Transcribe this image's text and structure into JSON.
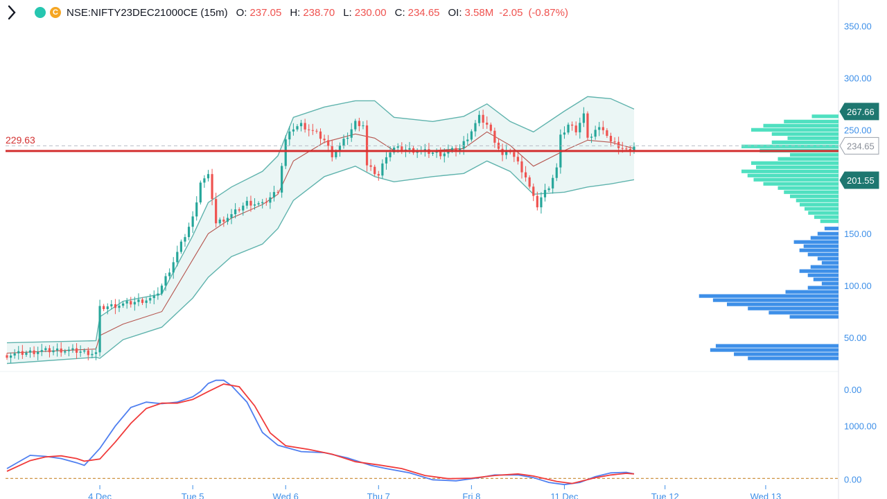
{
  "header": {
    "symbol": "NSE:NIFTY23DEC21000CE (15m)",
    "logo_letter": "C",
    "o_label": "O:",
    "o_value": "237.05",
    "h_label": "H:",
    "h_value": "238.70",
    "l_label": "L:",
    "l_value": "230.00",
    "c_label": "C:",
    "c_value": "234.65",
    "oi_label": "OI:",
    "oi_value": "3.58M",
    "change": "-2.05",
    "change_pct": "(-0.87%)"
  },
  "colors": {
    "up": "#26a69a",
    "down": "#ef5350",
    "bb": "#5fb3ad",
    "bb_fill": "#e8f5f3",
    "basis": "#b5554e",
    "price_line": "#d32f2f",
    "vp_up": "#4fe0c0",
    "vp_down": "#3d8fe8",
    "axis_text": "#3d8fe8",
    "osc_fast": "#4f7ff0",
    "osc_slow": "#f03a3a",
    "osc_zero": "#c8872c"
  },
  "chart_data": [
    {
      "type": "candlestick",
      "ylim": [
        0,
        375
      ],
      "y_ticks": [
        "350.00",
        "300.00",
        "250.00",
        "150.00",
        "100.00",
        "50.00",
        "0.00"
      ],
      "y_tick_values": [
        350,
        300,
        250,
        150,
        100,
        50,
        0
      ],
      "x_ticks": [
        "4 Dec",
        "Tue 5",
        "Wed 6",
        "Thu 7",
        "Fri 8",
        "11 Dec",
        "Tue 12",
        "Wed 13"
      ],
      "current_price": 234.65,
      "price_line_value": 229.63,
      "price_line_label": "229.63",
      "bb_upper_label": "267.66",
      "bb_upper_value": 267.66,
      "bb_lower_label": "201.55",
      "bb_lower_value": 201.55,
      "close_series": [
        [
          0,
          33
        ],
        [
          8,
          37
        ],
        [
          14,
          38
        ],
        [
          18,
          37
        ],
        [
          22,
          35
        ],
        [
          23,
          35
        ],
        [
          24,
          78
        ],
        [
          26,
          80
        ],
        [
          30,
          82
        ],
        [
          34,
          85
        ],
        [
          38,
          88
        ],
        [
          40,
          100
        ],
        [
          42,
          115
        ],
        [
          45,
          140
        ],
        [
          48,
          165
        ],
        [
          50,
          200
        ],
        [
          52,
          205
        ],
        [
          53,
          185
        ],
        [
          54,
          160
        ],
        [
          58,
          168
        ],
        [
          62,
          180
        ],
        [
          66,
          178
        ],
        [
          70,
          192
        ],
        [
          72,
          240
        ],
        [
          74,
          252
        ],
        [
          76,
          255
        ],
        [
          80,
          246
        ],
        [
          82,
          240
        ],
        [
          84,
          226
        ],
        [
          86,
          234
        ],
        [
          88,
          244
        ],
        [
          90,
          257
        ],
        [
          92,
          255
        ],
        [
          93,
          215
        ],
        [
          94,
          212
        ],
        [
          96,
          206
        ],
        [
          98,
          226
        ],
        [
          100,
          232
        ],
        [
          106,
          230
        ],
        [
          112,
          227
        ],
        [
          117,
          232
        ],
        [
          119,
          243
        ],
        [
          122,
          262
        ],
        [
          124,
          255
        ],
        [
          126,
          240
        ],
        [
          128,
          225
        ],
        [
          130,
          230
        ],
        [
          132,
          218
        ],
        [
          134,
          205
        ],
        [
          136,
          184
        ],
        [
          137,
          177
        ],
        [
          138,
          185
        ],
        [
          140,
          196
        ],
        [
          142,
          213
        ],
        [
          143,
          243
        ],
        [
          145,
          255
        ],
        [
          147,
          250
        ],
        [
          149,
          265
        ],
        [
          150,
          240
        ],
        [
          152,
          250
        ],
        [
          154,
          252
        ],
        [
          156,
          238
        ],
        [
          158,
          234
        ],
        [
          160,
          230
        ],
        [
          162,
          234.65
        ]
      ],
      "bb_upper": [
        [
          0,
          45
        ],
        [
          23,
          47
        ],
        [
          24,
          70
        ],
        [
          30,
          85
        ],
        [
          40,
          92
        ],
        [
          48,
          148
        ],
        [
          52,
          180
        ],
        [
          58,
          195
        ],
        [
          66,
          210
        ],
        [
          70,
          225
        ],
        [
          74,
          262
        ],
        [
          82,
          272
        ],
        [
          90,
          278
        ],
        [
          95,
          278
        ],
        [
          100,
          262
        ],
        [
          110,
          258
        ],
        [
          118,
          263
        ],
        [
          124,
          275
        ],
        [
          130,
          258
        ],
        [
          136,
          248
        ],
        [
          144,
          268
        ],
        [
          150,
          282
        ],
        [
          156,
          280
        ],
        [
          162,
          270
        ]
      ],
      "bb_basis": [
        [
          0,
          35
        ],
        [
          23,
          39
        ],
        [
          24,
          52
        ],
        [
          30,
          63
        ],
        [
          40,
          75
        ],
        [
          48,
          125
        ],
        [
          52,
          150
        ],
        [
          58,
          165
        ],
        [
          66,
          178
        ],
        [
          70,
          188
        ],
        [
          74,
          220
        ],
        [
          82,
          238
        ],
        [
          90,
          246
        ],
        [
          95,
          242
        ],
        [
          100,
          230
        ],
        [
          110,
          230
        ],
        [
          118,
          232
        ],
        [
          124,
          248
        ],
        [
          130,
          235
        ],
        [
          136,
          215
        ],
        [
          144,
          230
        ],
        [
          150,
          240
        ],
        [
          156,
          238
        ],
        [
          162,
          232
        ]
      ],
      "bb_lower": [
        [
          0,
          25
        ],
        [
          23,
          31
        ],
        [
          24,
          30
        ],
        [
          30,
          48
        ],
        [
          40,
          60
        ],
        [
          48,
          88
        ],
        [
          52,
          108
        ],
        [
          58,
          128
        ],
        [
          66,
          140
        ],
        [
          70,
          155
        ],
        [
          74,
          182
        ],
        [
          82,
          205
        ],
        [
          90,
          215
        ],
        [
          95,
          205
        ],
        [
          100,
          200
        ],
        [
          110,
          205
        ],
        [
          118,
          208
        ],
        [
          124,
          220
        ],
        [
          130,
          210
        ],
        [
          136,
          188
        ],
        [
          144,
          190
        ],
        [
          150,
          195
        ],
        [
          156,
          198
        ],
        [
          162,
          202
        ]
      ],
      "volume_profile_up": [
        [
          263,
          0.22
        ],
        [
          258,
          0.45
        ],
        [
          254,
          0.62
        ],
        [
          250,
          0.72
        ],
        [
          246,
          0.55
        ],
        [
          242,
          0.42
        ],
        [
          238,
          0.55
        ],
        [
          234,
          0.8
        ],
        [
          230,
          0.65
        ],
        [
          226,
          0.4
        ],
        [
          222,
          0.5
        ],
        [
          218,
          0.72
        ],
        [
          214,
          0.68
        ],
        [
          210,
          0.8
        ],
        [
          206,
          0.75
        ],
        [
          202,
          0.7
        ],
        [
          198,
          0.62
        ],
        [
          194,
          0.5
        ],
        [
          190,
          0.45
        ],
        [
          186,
          0.4
        ],
        [
          182,
          0.35
        ],
        [
          178,
          0.32
        ],
        [
          174,
          0.28
        ],
        [
          170,
          0.25
        ],
        [
          166,
          0.2
        ],
        [
          162,
          0.15
        ]
      ],
      "volume_profile_down": [
        [
          155,
          0.1
        ],
        [
          150,
          0.15
        ],
        [
          146,
          0.2
        ],
        [
          142,
          0.32
        ],
        [
          138,
          0.25
        ],
        [
          134,
          0.28
        ],
        [
          130,
          0.22
        ],
        [
          126,
          0.15
        ],
        [
          122,
          0.12
        ],
        [
          118,
          0.2
        ],
        [
          114,
          0.28
        ],
        [
          110,
          0.22
        ],
        [
          106,
          0.18
        ],
        [
          102,
          0.12
        ],
        [
          98,
          0.22
        ],
        [
          94,
          0.38
        ],
        [
          90,
          1.0
        ],
        [
          86,
          0.9
        ],
        [
          82,
          0.8
        ],
        [
          78,
          0.65
        ],
        [
          74,
          0.5
        ],
        [
          70,
          0.35
        ],
        [
          42,
          0.88
        ],
        [
          38,
          0.92
        ],
        [
          34,
          0.75
        ],
        [
          30,
          0.65
        ]
      ]
    },
    {
      "type": "line",
      "ylim": [
        -150,
        2000
      ],
      "y_ticks": [
        "1000.00",
        "0.00"
      ],
      "y_tick_values": [
        1000,
        0
      ],
      "series": [
        {
          "values": [
            [
              0,
              200
            ],
            [
              6,
              450
            ],
            [
              10,
              430
            ],
            [
              14,
              390
            ],
            [
              18,
              310
            ],
            [
              20,
              260
            ],
            [
              24,
              580
            ],
            [
              28,
              1000
            ],
            [
              32,
              1350
            ],
            [
              36,
              1450
            ],
            [
              40,
              1420
            ],
            [
              44,
              1450
            ],
            [
              48,
              1550
            ],
            [
              50,
              1650
            ],
            [
              52,
              1800
            ],
            [
              54,
              1860
            ],
            [
              56,
              1860
            ],
            [
              58,
              1760
            ],
            [
              62,
              1450
            ],
            [
              66,
              880
            ],
            [
              70,
              640
            ],
            [
              76,
              520
            ],
            [
              82,
              500
            ],
            [
              88,
              400
            ],
            [
              94,
              260
            ],
            [
              98,
              200
            ],
            [
              104,
              120
            ],
            [
              110,
              -10
            ],
            [
              116,
              -30
            ],
            [
              122,
              30
            ],
            [
              126,
              80
            ],
            [
              132,
              80
            ],
            [
              136,
              30
            ],
            [
              140,
              -60
            ],
            [
              144,
              -100
            ],
            [
              148,
              -60
            ],
            [
              152,
              50
            ],
            [
              156,
              120
            ],
            [
              160,
              130
            ],
            [
              162,
              100
            ]
          ]
        },
        {
          "values": [
            [
              0,
              150
            ],
            [
              6,
              350
            ],
            [
              10,
              420
            ],
            [
              14,
              440
            ],
            [
              18,
              390
            ],
            [
              20,
              340
            ],
            [
              24,
              380
            ],
            [
              28,
              700
            ],
            [
              32,
              1050
            ],
            [
              36,
              1330
            ],
            [
              40,
              1430
            ],
            [
              44,
              1430
            ],
            [
              48,
              1500
            ],
            [
              52,
              1650
            ],
            [
              56,
              1790
            ],
            [
              60,
              1740
            ],
            [
              64,
              1380
            ],
            [
              68,
              870
            ],
            [
              72,
              630
            ],
            [
              78,
              560
            ],
            [
              84,
              470
            ],
            [
              90,
              330
            ],
            [
              96,
              270
            ],
            [
              102,
              200
            ],
            [
              108,
              70
            ],
            [
              114,
              10
            ],
            [
              120,
              20
            ],
            [
              126,
              70
            ],
            [
              132,
              100
            ],
            [
              136,
              60
            ],
            [
              142,
              -40
            ],
            [
              146,
              -80
            ],
            [
              152,
              30
            ],
            [
              156,
              80
            ],
            [
              160,
              110
            ],
            [
              162,
              100
            ]
          ]
        }
      ],
      "zero_line_value": 15
    }
  ]
}
